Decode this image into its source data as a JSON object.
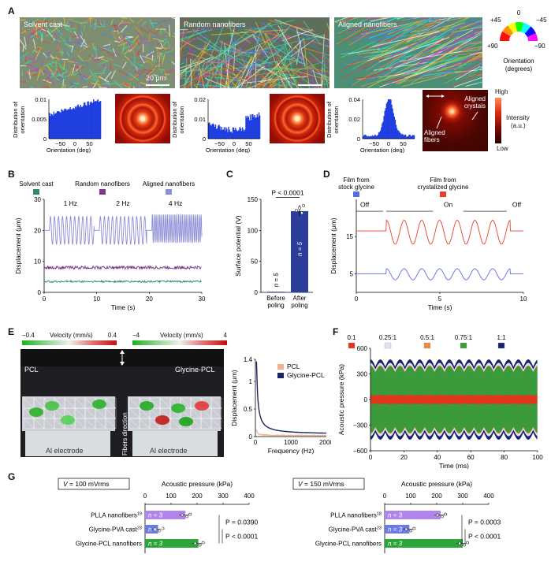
{
  "panel_labels": [
    "A",
    "B",
    "C",
    "D",
    "E",
    "F",
    "G"
  ],
  "panelA": {
    "images": [
      {
        "label": "Solvent cast",
        "scalebar": "20 μm"
      },
      {
        "label": "Random nanofibers"
      },
      {
        "label": "Aligned nanofibers"
      }
    ],
    "wheel": {
      "top": "0",
      "left_top": "+45",
      "right_top": "−45",
      "left_bottom": "+90",
      "right_bottom": "−90",
      "caption1": "Orientation",
      "caption2": "(degrees)"
    },
    "histogram_ylabel1": "Distribution of",
    "histogram_ylabel2": "orientation",
    "histogram_xlabel": "Orientation (deg)",
    "hists": [
      {
        "yticks": [
          "0.01",
          "0.005",
          "0"
        ],
        "xticks": [
          "−50",
          "0",
          "50"
        ]
      },
      {
        "yticks": [
          "0.02",
          "0.01",
          "0"
        ],
        "xticks": [
          "−50",
          "0",
          "50"
        ]
      },
      {
        "yticks": [
          "0.04",
          "0.02",
          "0"
        ],
        "xticks": [
          "−50",
          "0",
          "50"
        ]
      }
    ],
    "annot_aligned_crystals1": "Aligned",
    "annot_aligned_crystals2": "crystals",
    "annot_aligned_fibers1": "Aligned",
    "annot_aligned_fibers2": "fibers",
    "intensity": {
      "high": "High",
      "low": "Low",
      "label1": "Intensity",
      "label2": "(a.u.)"
    }
  },
  "chart_data": [
    {
      "panel": "B",
      "type": "line",
      "legend": [
        {
          "name": "Solvent cast",
          "color": "#2e8b6b"
        },
        {
          "name": "Random nanofibers",
          "color": "#7a3a8a"
        },
        {
          "name": "Aligned nanofibers",
          "color": "#8f8fd8"
        }
      ],
      "xlabel": "Time (s)",
      "ylabel": "Displacement (μm)",
      "xlim": [
        0,
        30
      ],
      "ylim": [
        0,
        30
      ],
      "xticks": [
        "0",
        "10",
        "20",
        "30"
      ],
      "yticks": [
        "30",
        "20",
        "10",
        "0"
      ],
      "annotations": [
        "1 Hz",
        "2 Hz",
        "4 Hz"
      ],
      "series": [
        {
          "name": "Aligned nanofibers",
          "baseline": 20,
          "amplitude": 4.5,
          "segments_hz": [
            1,
            2,
            4
          ]
        },
        {
          "name": "Random nanofibers",
          "baseline": 8,
          "amplitude": 0.5
        },
        {
          "name": "Solvent cast",
          "baseline": 3.5,
          "amplitude": 0.3
        }
      ]
    },
    {
      "panel": "C",
      "type": "bar",
      "categories": [
        "Before poling",
        "After poling"
      ],
      "cat_line1": [
        "Before",
        "After"
      ],
      "cat_line2": [
        "poling",
        "poling"
      ],
      "values": [
        1,
        131
      ],
      "ylabel": "Surface potential (V)",
      "ylim": [
        0,
        150
      ],
      "yticks": [
        "150",
        "100",
        "50",
        "0"
      ],
      "n_labels": [
        "n = 5",
        "n = 5"
      ],
      "pvalue": "P < 0.0001",
      "bar_color": "#2c3e9c"
    },
    {
      "panel": "D",
      "type": "line",
      "legend": [
        {
          "name1": "Film from",
          "name2": "stock glycine",
          "color": "#5b6ee1"
        },
        {
          "name1": "Film from",
          "name2": "crystalized glycine",
          "color": "#e8412c"
        }
      ],
      "xlabel": "Time (s)",
      "ylabel": "Displacement (μm)",
      "xlim": [
        0,
        10
      ],
      "ylim": [
        0,
        25
      ],
      "xticks": [
        "0",
        "5",
        "10"
      ],
      "yticks": [
        "15",
        "5"
      ],
      "state_labels": [
        "Off",
        "On",
        "Off"
      ]
    },
    {
      "panel": "E",
      "type": "line",
      "legend": [
        "PCL",
        "Glycine-PCL"
      ],
      "legend_colors": [
        "#f0b090",
        "#1c2266"
      ],
      "xlabel": "Frequency (Hz)",
      "ylabel": "Displacement (μm)",
      "xlim": [
        0,
        2000
      ],
      "ylim": [
        0,
        1.4
      ],
      "xticks": [
        "0",
        "1000",
        "2000"
      ],
      "yticks": [
        "1.4",
        "1",
        "0.5",
        "0"
      ]
    },
    {
      "panel": "F",
      "type": "line",
      "legend": [
        "0:1",
        "0.25:1",
        "0.5:1",
        "0.75:1",
        "1:1"
      ],
      "legend_colors": [
        "#e2361e",
        "#dde4f0",
        "#f08a3c",
        "#3b9a3b",
        "#1b2070"
      ],
      "xlabel": "Time (ms)",
      "ylabel": "Acoustic pressure (kPa)",
      "xlim": [
        0,
        100
      ],
      "ylim": [
        -600,
        600
      ],
      "xticks": [
        "0",
        "20",
        "40",
        "60",
        "80",
        "100"
      ],
      "yticks": [
        "600",
        "300",
        "0",
        "−300",
        "−600"
      ],
      "amplitudes": [
        55,
        430,
        400,
        390,
        470
      ]
    },
    {
      "panel": "G",
      "type": "bar",
      "groups": [
        {
          "condition": "= 100 mVrms",
          "categories": [
            "PLLA nanofibers",
            "Glycine-PVA cast",
            "Glycine-PCL nanofibers"
          ],
          "refs": [
            "19",
            "23",
            ""
          ],
          "values": [
            155,
            50,
            205
          ],
          "n_labels": [
            "n = 3",
            "n = 3",
            "n = 3"
          ],
          "pvalues": [
            "P = 0.0390",
            "P < 0.0001"
          ]
        },
        {
          "condition": "= 150 mVrms",
          "categories": [
            "PLLA nanofibers",
            "Glycine-PVA cast",
            "Glycine-PCL nanofibers"
          ],
          "refs": [
            "18",
            "23",
            ""
          ],
          "values": [
            215,
            95,
            300
          ],
          "n_labels": [
            "n = 3",
            "n = 3",
            "n = 3"
          ],
          "pvalues": [
            "P = 0.0003",
            "P < 0.0001"
          ]
        }
      ],
      "xlabel": "Acoustic pressure (kPa)",
      "xlim": [
        0,
        400
      ],
      "xticks": [
        "0",
        "100",
        "200",
        "300",
        "400"
      ],
      "bar_colors": [
        "#b084e8",
        "#6d7ae6",
        "#2ea53a"
      ]
    }
  ],
  "panelE": {
    "scale1": {
      "min": "−0.4",
      "label": "Velocity (mm/s)",
      "max": "0.4"
    },
    "scale2": {
      "min": "−4",
      "label": "Velocity (mm/s)",
      "max": "4"
    },
    "photo1_title": "PCL",
    "photo2_title": "Glycine-PCL",
    "electrode": "Al electrode",
    "fibers_direction": "Fibers direction"
  }
}
